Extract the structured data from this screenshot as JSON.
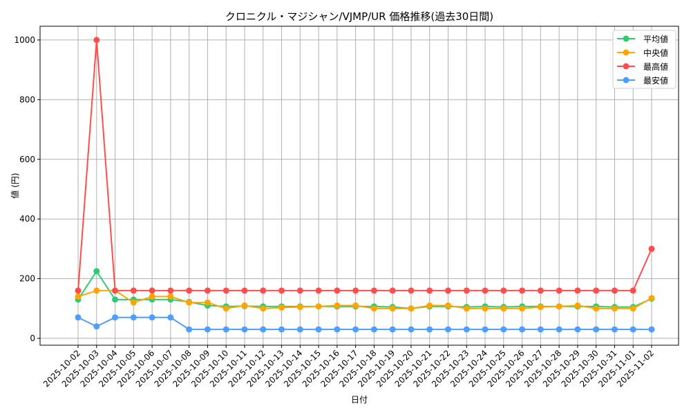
{
  "chart_data": {
    "type": "line",
    "title": "クロニクル・マジシャン/VJMP/UR 価格推移(過去30日間)",
    "xlabel": "日付",
    "ylabel": "値 (円)",
    "ylim": [
      -23,
      1046
    ],
    "yticks": [
      0,
      200,
      400,
      600,
      800,
      1000
    ],
    "grid": true,
    "legend_position": "top-right",
    "x": [
      "2025-10-02",
      "2025-10-03",
      "2025-10-04",
      "2025-10-05",
      "2025-10-06",
      "2025-10-07",
      "2025-10-08",
      "2025-10-09",
      "2025-10-10",
      "2025-10-11",
      "2025-10-12",
      "2025-10-13",
      "2025-10-14",
      "2025-10-15",
      "2025-10-16",
      "2025-10-17",
      "2025-10-18",
      "2025-10-19",
      "2025-10-20",
      "2025-10-21",
      "2025-10-22",
      "2025-10-23",
      "2025-10-24",
      "2025-10-25",
      "2025-10-26",
      "2025-10-27",
      "2025-10-28",
      "2025-10-29",
      "2025-10-30",
      "2025-10-31",
      "2025-11-01",
      "2025-11-02"
    ],
    "series": [
      {
        "name": "平均値",
        "color": "#2ecc71",
        "values": [
          130,
          225,
          130,
          130,
          130,
          130,
          122,
          110,
          107,
          108,
          107,
          107,
          107,
          107,
          107,
          107,
          107,
          105,
          100,
          107,
          107,
          105,
          107,
          105,
          107,
          107,
          107,
          107,
          107,
          105,
          105,
          133
        ]
      },
      {
        "name": "中央値",
        "color": "#ffa500",
        "values": [
          140,
          160,
          160,
          120,
          140,
          140,
          120,
          120,
          100,
          110,
          100,
          103,
          105,
          107,
          110,
          110,
          100,
          100,
          100,
          110,
          110,
          100,
          100,
          100,
          100,
          105,
          107,
          110,
          100,
          100,
          100,
          135
        ]
      },
      {
        "name": "最高値",
        "color": "#ff4d4d",
        "values": [
          160,
          1000,
          160,
          160,
          160,
          160,
          160,
          160,
          160,
          160,
          160,
          160,
          160,
          160,
          160,
          160,
          160,
          160,
          160,
          160,
          160,
          160,
          160,
          160,
          160,
          160,
          160,
          160,
          160,
          160,
          160,
          300
        ]
      },
      {
        "name": "最安値",
        "color": "#4d9fff",
        "values": [
          70,
          40,
          70,
          70,
          70,
          70,
          30,
          30,
          30,
          30,
          30,
          30,
          30,
          30,
          30,
          30,
          30,
          30,
          30,
          30,
          30,
          30,
          30,
          30,
          30,
          30,
          30,
          30,
          30,
          30,
          30,
          30
        ]
      }
    ]
  }
}
